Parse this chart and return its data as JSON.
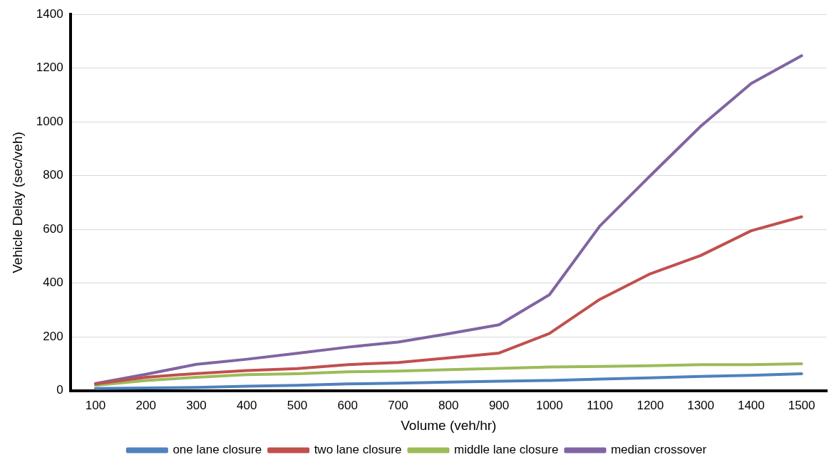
{
  "chart_data": {
    "type": "line",
    "xlabel": "Volume (veh/hr)",
    "ylabel": "Vehicle Delay (sec/veh)",
    "categories": [
      "100",
      "200",
      "300",
      "400",
      "500",
      "600",
      "700",
      "800",
      "900",
      "1000",
      "1100",
      "1200",
      "1300",
      "1400",
      "1500"
    ],
    "series": [
      {
        "name": "one lane closure",
        "color": "#4f81bd",
        "values": [
          8,
          10,
          12,
          17,
          20,
          25,
          28,
          32,
          35,
          38,
          43,
          48,
          53,
          57,
          63
        ]
      },
      {
        "name": "two lane closure",
        "color": "#c0504d",
        "values": [
          25,
          50,
          64,
          75,
          82,
          97,
          105,
          122,
          140,
          213,
          340,
          435,
          503,
          595,
          647
        ]
      },
      {
        "name": "middle lane closure",
        "color": "#9bbb59",
        "values": [
          20,
          38,
          50,
          60,
          63,
          70,
          73,
          78,
          83,
          88,
          90,
          93,
          97,
          97,
          100
        ]
      },
      {
        "name": "median crossover",
        "color": "#8064a2",
        "values": [
          27,
          61,
          98,
          117,
          139,
          162,
          181,
          212,
          245,
          357,
          613,
          800,
          984,
          1143,
          1246
        ]
      }
    ],
    "ylim": [
      0,
      1400
    ],
    "yticks": [
      0,
      200,
      400,
      600,
      800,
      1000,
      1200,
      1400
    ],
    "grid": "y",
    "legend": "bottom",
    "marker": "none",
    "line_style": "solid"
  }
}
